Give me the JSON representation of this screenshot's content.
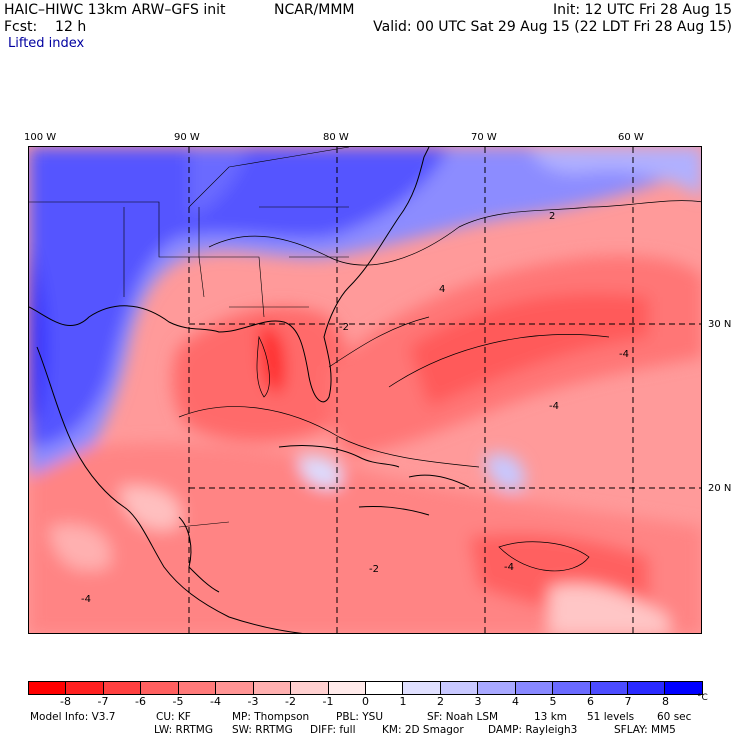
{
  "header": {
    "model_title": "HAIC–HIWC 13km ARW–GFS init",
    "agency": "NCAR/MMM",
    "init": "Init: 12 UTC Fri 28 Aug 15",
    "fcst": "Fcst:    12 h",
    "valid": "Valid: 00 UTC Sat 29 Aug 15 (22 LDT Fri 28 Aug 15)",
    "field": "Lifted index"
  },
  "map": {
    "lon_labels": [
      "100 W",
      "90 W",
      "80 W",
      "70 W",
      "60 W"
    ],
    "lat_labels": [
      "30 N",
      "20 N"
    ],
    "contour_labels": [
      "2",
      "4",
      "-2",
      "-4",
      "-4",
      "-4",
      "-2",
      "-4"
    ]
  },
  "colorbar": {
    "unit": "°C",
    "ticks": [
      "-8",
      "-7",
      "-6",
      "-5",
      "-4",
      "-3",
      "-2",
      "-1",
      "0",
      "1",
      "2",
      "3",
      "4",
      "5",
      "6",
      "7",
      "8"
    ],
    "colors": [
      "#ff0000",
      "#ff2020",
      "#ff4040",
      "#ff6060",
      "#ff7a7a",
      "#ff9494",
      "#ffb0b0",
      "#ffd0d0",
      "#ffeaea",
      "#ffffff",
      "#e0e0ff",
      "#c8c8ff",
      "#a8a8ff",
      "#8888ff",
      "#6a6aff",
      "#4c4cff",
      "#2a2aff",
      "#0000ff"
    ]
  },
  "footer": {
    "line1": [
      "Model Info: V3.7",
      "CU: KF",
      "MP: Thompson",
      "PBL: YSU",
      "SF: Noah LSM",
      "13 km",
      "51 levels",
      "60 sec"
    ],
    "line2": [
      "LW: RRTMG",
      "SW: RRTMG",
      "DIFF: full",
      "KM: 2D Smagor",
      "DAMP: Rayleigh3",
      "SFLAY: MM5"
    ]
  }
}
